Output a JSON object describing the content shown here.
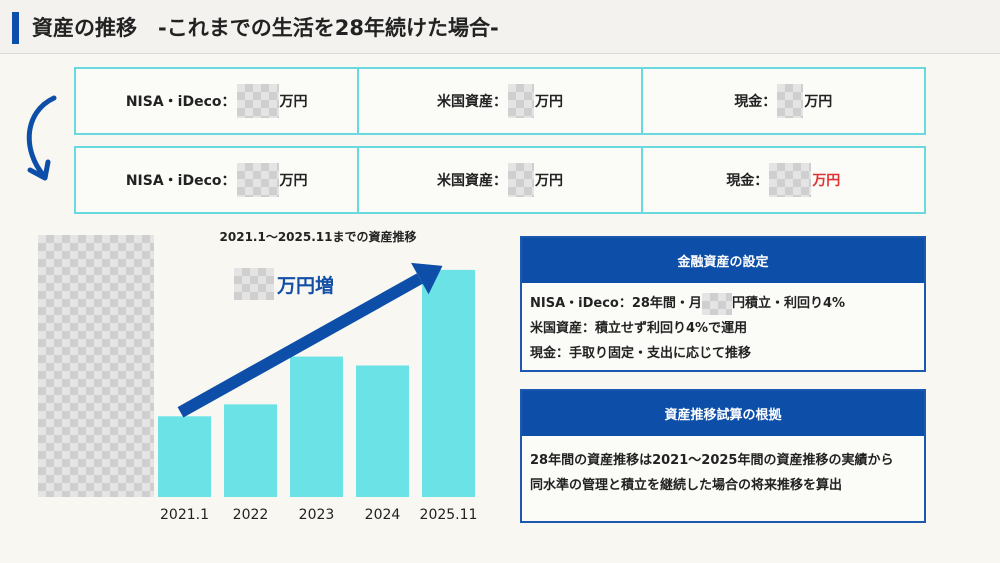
{
  "header": {
    "title": "資産の推移　-これまでの生活を28年続けた場合-"
  },
  "summary_rows": [
    {
      "nisa": {
        "label": "NISA・iDeco：",
        "unit": "万円"
      },
      "us": {
        "label": "米国資産：",
        "unit": "万円"
      },
      "cash": {
        "label": "現金：",
        "unit": "万円"
      }
    },
    {
      "nisa": {
        "label": "NISA・iDeco：",
        "unit": "万円"
      },
      "us": {
        "label": "米国資産：",
        "unit": "万円"
      },
      "cash": {
        "label": "現金：",
        "unit": "万円",
        "unit_color": "#e03434"
      }
    }
  ],
  "chart": {
    "title": "2021.1〜2025.11までの資産推移",
    "increase_unit": "万円増"
  },
  "chart_data": {
    "type": "bar",
    "title": "2021.1〜2025.11までの資産推移",
    "categories": [
      "2021.1",
      "2022",
      "2023",
      "2024",
      "2025.11"
    ],
    "values": [
      27,
      31,
      47,
      44,
      76
    ],
    "ylim": [
      0,
      86
    ],
    "grid": false,
    "bar_color": "#6be2e6",
    "arrow_color": "#0d4fa8"
  },
  "settings_box": {
    "title": "金融資産の設定",
    "line1_prefix": "NISA・iDeco：28年間・月",
    "line1_suffix": "円積立・利回り4%",
    "line2": "米国資産：積立せず利回り4%で運用",
    "line3": "現金：手取り固定・支出に応じて推移"
  },
  "basis_box": {
    "title": "資産推移試算の根拠",
    "line1": "28年間の資産推移は2021〜2025年間の資産推移の実績から",
    "line2": "同水準の管理と積立を継続した場合の将来推移を算出"
  },
  "colors": {
    "accent_blue": "#0d4fa8",
    "cyan_border": "#6ad8df",
    "bar_cyan": "#6be2e6",
    "highlight_red": "#e03434"
  }
}
